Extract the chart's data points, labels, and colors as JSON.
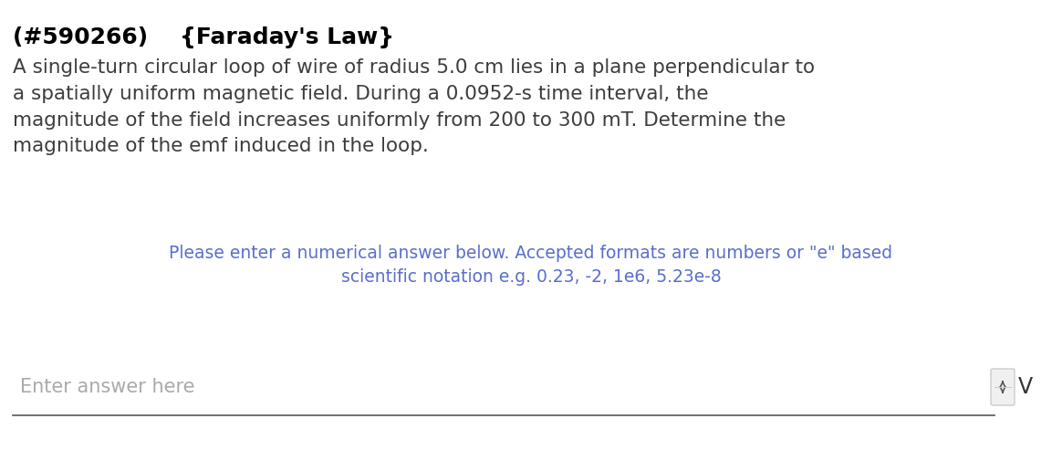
{
  "background_color": "#ffffff",
  "title_line": "(#590266)    {Faraday's Law}",
  "title_color": "#000000",
  "title_fontsize": 18,
  "body_text": "A single-turn circular loop of wire of radius 5.0 cm lies in a plane perpendicular to\na spatially uniform magnetic field. During a 0.0952-s time interval, the\nmagnitude of the field increases uniformly from 200 to 300 mT. Determine the\nmagnitude of the emf induced in the loop.",
  "body_color": "#3d3d3d",
  "body_fontsize": 15.5,
  "hint_line1": "Please enter a numerical answer below. Accepted formats are numbers or \"e\" based",
  "hint_line2": "scientific notation e.g. 0.23, -2, 1e6, 5.23e-8",
  "hint_color": "#5b6ecc",
  "hint_fontsize": 13.5,
  "input_placeholder": "Enter answer here",
  "input_placeholder_color": "#aaaaaa",
  "input_placeholder_fontsize": 15,
  "unit_text": "V",
  "unit_color": "#333333",
  "unit_fontsize": 17,
  "line_color": "#666666",
  "spinner_color": "#555555",
  "spinner_bg": "#f0f0f0",
  "spinner_border": "#cccccc"
}
